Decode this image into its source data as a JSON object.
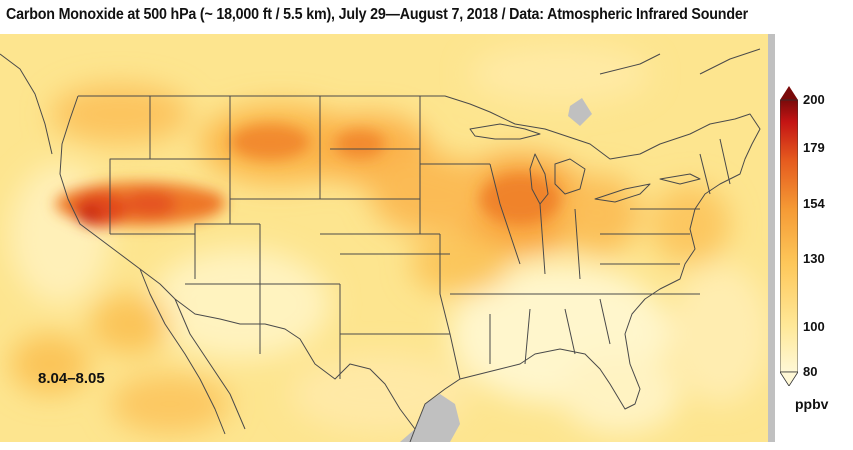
{
  "title": "Carbon Monoxide at 500 hPa (~ 18,000 ft / 5.5 km), July 29—August 7, 2018 / Data: Atmospheric Infrared Sounder",
  "date_range_label": "8.04–8.05",
  "colorbar": {
    "unit": "ppbv",
    "ticks": [
      "80",
      "100",
      "130",
      "154",
      "179",
      "200"
    ],
    "min": 80,
    "max": 200,
    "colors": [
      "#fff8d6",
      "#ffe898",
      "#fdc75a",
      "#f59a35",
      "#e55a1e",
      "#c41414",
      "#7a0a0a"
    ],
    "missing_color": "#c0c0c0"
  }
}
